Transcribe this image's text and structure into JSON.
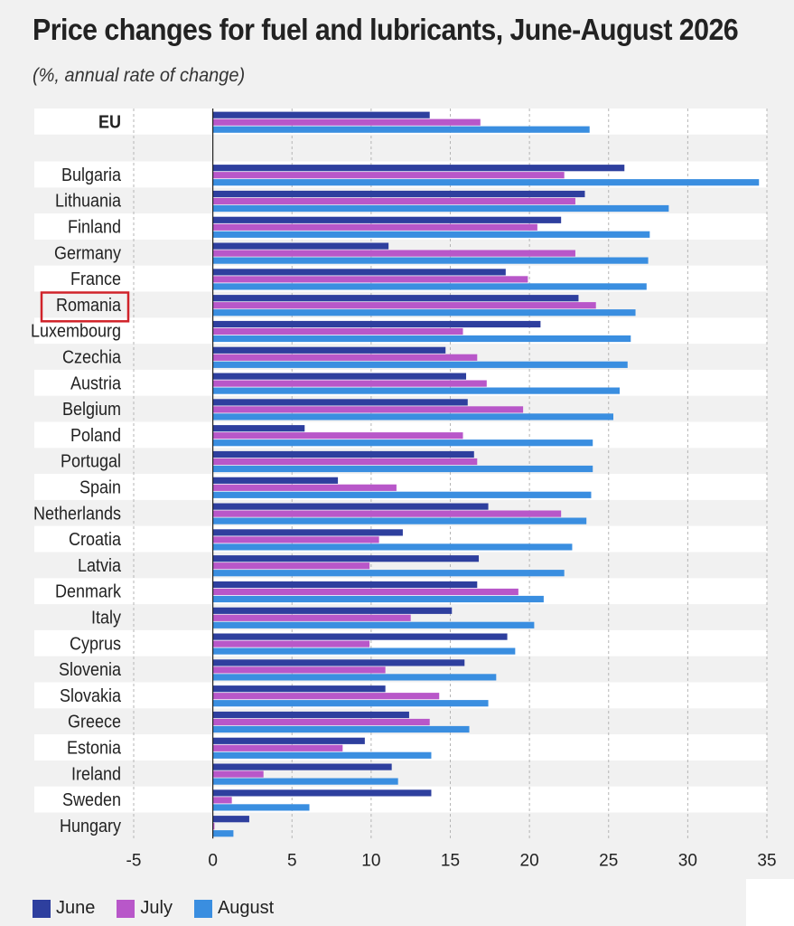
{
  "title": "Price changes for fuel and lubricants, June-August 2026",
  "subtitle": "(%, annual rate of change)",
  "colors": {
    "June": "#2e3f9e",
    "July": "#b857c9",
    "August": "#3a8ee0",
    "highlight": "#d0232a",
    "grid": "#b5b5b5",
    "row_alt": "#ffffff",
    "row_base": "#f1f1f1"
  },
  "highlighted_category": "Romania",
  "legend": [
    {
      "name": "June",
      "color_key": "June"
    },
    {
      "name": "July",
      "color_key": "July"
    },
    {
      "name": "August",
      "color_key": "August"
    }
  ],
  "chart_data": {
    "type": "bar",
    "orientation": "horizontal",
    "xlim": [
      -5,
      35
    ],
    "xticks": [
      -5,
      0,
      5,
      10,
      15,
      20,
      25,
      30,
      35
    ],
    "grid": true,
    "legend_position": "bottom-left",
    "categories": [
      "EU",
      "Bulgaria",
      "Lithuania",
      "Finland",
      "Germany",
      "France",
      "Romania",
      "Luxembourg",
      "Czechia",
      "Austria",
      "Belgium",
      "Poland",
      "Portugal",
      "Spain",
      "Netherlands",
      "Croatia",
      "Latvia",
      "Denmark",
      "Italy",
      "Cyprus",
      "Slovenia",
      "Slovakia",
      "Greece",
      "Estonia",
      "Ireland",
      "Sweden",
      "Hungary"
    ],
    "series": [
      {
        "name": "June",
        "values": [
          13.7,
          26.0,
          23.5,
          22.0,
          11.1,
          18.5,
          23.1,
          20.7,
          14.7,
          16.0,
          16.1,
          5.8,
          16.5,
          7.9,
          17.4,
          12.0,
          16.8,
          16.7,
          15.1,
          18.6,
          15.9,
          10.9,
          12.4,
          9.6,
          11.3,
          13.8,
          2.3
        ]
      },
      {
        "name": "July",
        "values": [
          16.9,
          22.2,
          22.9,
          20.5,
          22.9,
          19.9,
          24.2,
          15.8,
          16.7,
          17.3,
          19.6,
          15.8,
          16.7,
          11.6,
          22.0,
          10.5,
          9.9,
          19.3,
          12.5,
          9.9,
          10.9,
          14.3,
          13.7,
          8.2,
          3.2,
          1.2,
          0.1
        ]
      },
      {
        "name": "August",
        "values": [
          23.8,
          34.5,
          28.8,
          27.6,
          27.5,
          27.4,
          26.7,
          26.4,
          26.2,
          25.7,
          25.3,
          24.0,
          24.0,
          23.9,
          23.6,
          22.7,
          22.2,
          20.9,
          20.3,
          19.1,
          17.9,
          17.4,
          16.2,
          13.8,
          11.7,
          6.1,
          1.3
        ]
      }
    ]
  }
}
